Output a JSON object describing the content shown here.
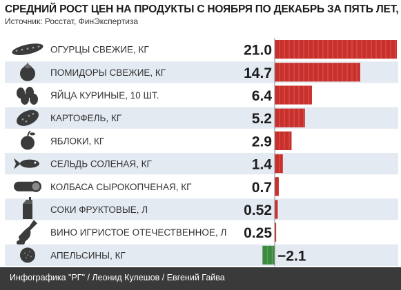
{
  "header": {
    "title": "СРЕДНИЙ РОСТ ЦЕН НА ПРОДУКТЫ С НОЯБРЯ ПО ДЕКАБРЬ ЗА ПЯТЬ ЛЕТ, %",
    "source": "Источник: Росстат, ФинЭкспертиза"
  },
  "footer": {
    "credit": "Инфографика \"РГ\" / Леонид Кулешов / Евгений Гайва"
  },
  "colors": {
    "positive": "#c9302c",
    "negative": "#3b8a3e",
    "stripe": "#e4eaf2",
    "icon": "#3b3b3b",
    "axis": "#888888"
  },
  "chart_data": {
    "type": "bar",
    "orientation": "horizontal",
    "categories": [
      "ОГУРЦЫ СВЕЖИЕ, КГ",
      "ПОМИДОРЫ СВЕЖИЕ, КГ",
      "ЯЙЦА КУРИНЫЕ, 10 ШТ.",
      "КАРТОФЕЛЬ, КГ",
      "ЯБЛОКИ, КГ",
      "СЕЛЬДЬ СОЛЕНАЯ, КГ",
      "КОЛБАСА СЫРОКОПЧЕНАЯ, КГ",
      "СОКИ ФРУКТОВЫЕ, Л",
      "ВИНО ИГРИСТОЕ ОТЕЧЕСТВЕННОЕ, Л",
      "АПЕЛЬСИНЫ, КГ"
    ],
    "values": [
      21.0,
      14.7,
      6.4,
      5.2,
      2.9,
      1.4,
      0.7,
      0.52,
      0.25,
      -2.1
    ],
    "value_labels": [
      "21.0",
      "14.7",
      "6.4",
      "5.2",
      "2.9",
      "1.4",
      "0.7",
      "0.52",
      "0.25",
      "−2.1"
    ],
    "icons": [
      "cucumber-icon",
      "tomato-icon",
      "eggs-icon",
      "potato-icon",
      "apple-icon",
      "fish-icon",
      "sausage-icon",
      "juice-icon",
      "wine-icon",
      "orange-icon"
    ],
    "xlim": [
      -2.1,
      21.0
    ],
    "grid": false,
    "legend": "none"
  }
}
